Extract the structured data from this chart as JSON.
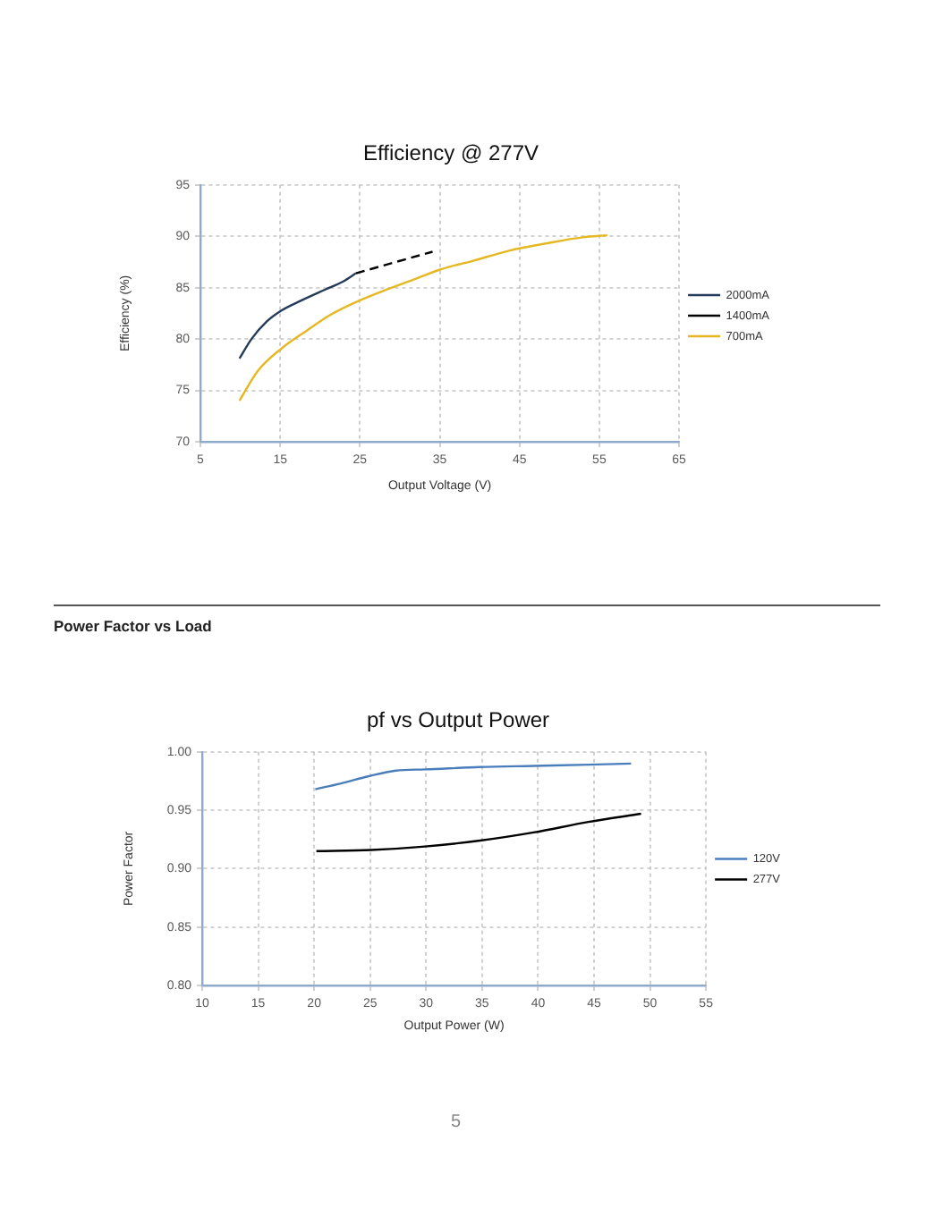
{
  "chart_data": [
    {
      "type": "line",
      "title": "Efficiency @ 277V",
      "xlabel": "Output Voltage (V)",
      "ylabel": "Efficiency (%)",
      "xlim": [
        5,
        65
      ],
      "xticks": [
        5,
        15,
        25,
        35,
        45,
        55,
        65
      ],
      "ylim": [
        70,
        95
      ],
      "yticks": [
        70,
        75,
        80,
        85,
        90,
        95
      ],
      "grid": true,
      "legend": "right",
      "marker": "none",
      "line_style": "solid",
      "series": [
        {
          "name": "2000mA",
          "color": "#243b5a",
          "x": [
            9.9,
            11.4,
            13.3,
            15.2,
            17.5,
            20.6,
            22.9,
            24.5
          ],
          "values": [
            78.1,
            80.0,
            81.7,
            82.8,
            83.7,
            84.8,
            85.6,
            86.4
          ]
        },
        {
          "name": "1400mA",
          "color": "#000000",
          "line_style": "dashed",
          "x": [
            24.5,
            29.5,
            34.1
          ],
          "values": [
            86.4,
            87.5,
            88.5
          ]
        },
        {
          "name": "700mA",
          "color": "#e5b821",
          "x": [
            9.9,
            12.2,
            15.2,
            18.3,
            21.4,
            24.8,
            28.3,
            31.8,
            35.2,
            39.1,
            43.7,
            48.3,
            52.9,
            56.0
          ],
          "values": [
            74.0,
            76.9,
            79.1,
            80.8,
            82.4,
            83.7,
            84.8,
            85.8,
            86.8,
            87.6,
            88.6,
            89.3,
            89.9,
            90.1
          ]
        }
      ]
    },
    {
      "type": "line",
      "title": "pf vs Output Power",
      "xlabel": "Output Power (W)",
      "ylabel": "Power Factor",
      "xlim": [
        10,
        55
      ],
      "xticks": [
        10,
        15,
        20,
        25,
        30,
        35,
        40,
        45,
        50,
        55
      ],
      "ylim": [
        0.8,
        1
      ],
      "yticks": [
        {
          "value": 0.8,
          "label": "0.80"
        },
        {
          "value": 0.85,
          "label": "0.85"
        },
        {
          "value": 0.9,
          "label": "0.90"
        },
        {
          "value": 0.95,
          "label": "0.95"
        },
        {
          "value": 1,
          "label": "1.00"
        }
      ],
      "grid": true,
      "legend": "right",
      "marker": "none",
      "line_style": "solid",
      "annotations": [
        "Power Factor vs Load",
        "5"
      ],
      "series": [
        {
          "name": "120V",
          "color": "#4a7ebb",
          "x": [
            20.1,
            22.4,
            24.8,
            27.3,
            29.9,
            34.8,
            39.6,
            44.5,
            48.3
          ],
          "values": [
            0.968,
            0.973,
            0.979,
            0.984,
            0.985,
            0.987,
            0.988,
            0.989,
            0.99
          ]
        },
        {
          "name": "277V",
          "color": "#000000",
          "x": [
            20.2,
            25.1,
            29.9,
            34.8,
            39.6,
            44.5,
            49.2
          ],
          "values": [
            0.915,
            0.916,
            0.919,
            0.924,
            0.931,
            0.94,
            0.947
          ]
        }
      ]
    }
  ]
}
